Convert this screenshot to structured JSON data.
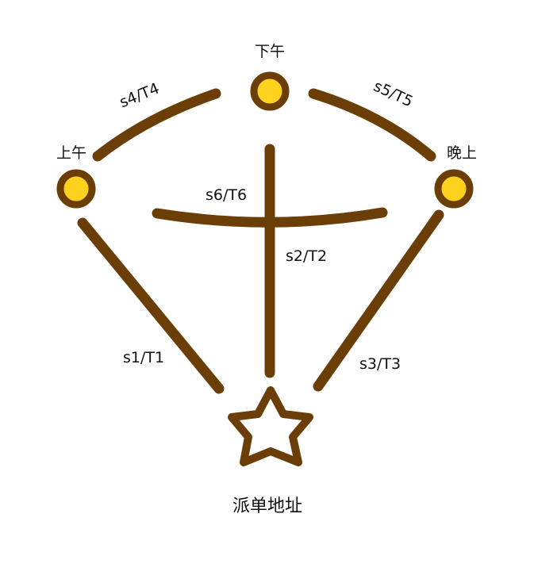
{
  "nodes": {
    "morning": {
      "label": "上午"
    },
    "afternoon": {
      "label": "下午"
    },
    "evening": {
      "label": "晚上"
    },
    "dispatch": {
      "label": "派单地址"
    }
  },
  "edges": {
    "e1": {
      "label": "s1/T1"
    },
    "e2": {
      "label": "s2/T2"
    },
    "e3": {
      "label": "s3/T3"
    },
    "e4": {
      "label": "s4/T4"
    },
    "e5": {
      "label": "s5/T5"
    },
    "e6": {
      "label": "s6/T6"
    }
  },
  "colors": {
    "edge": "#6b3e07",
    "node_ring": "#6b3e07",
    "node_fill": "#ffd21f",
    "star_fill": "#ffffff"
  }
}
